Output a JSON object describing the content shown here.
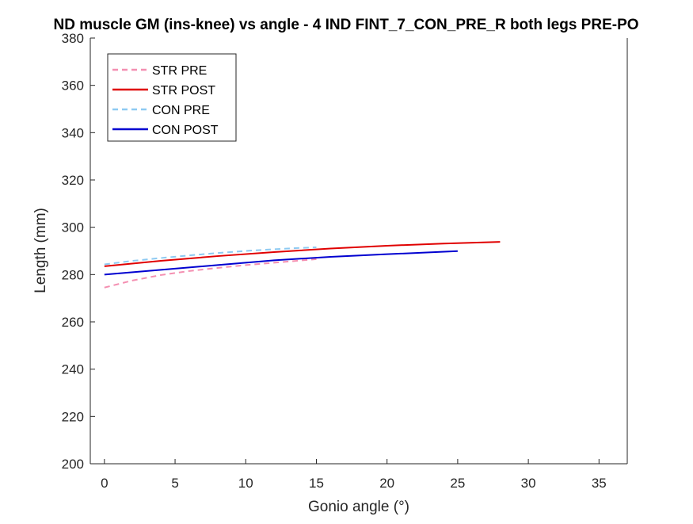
{
  "chart_data": {
    "type": "line",
    "title": "ND muscle GM (ins-knee) vs angle - 4 IND FINT_7_CON_PRE_R both legs PRE-PO",
    "xlabel": "Gonio angle (°)",
    "ylabel": "Length (mm)",
    "xlim": [
      -1,
      37
    ],
    "ylim": [
      200,
      380
    ],
    "xticks": [
      0,
      5,
      10,
      15,
      20,
      25,
      30,
      35
    ],
    "yticks": [
      200,
      220,
      240,
      260,
      280,
      300,
      320,
      340,
      360,
      380
    ],
    "grid": false,
    "legend_position": "top-left",
    "series": [
      {
        "name": "STR PRE",
        "color": "#F48FB1",
        "dashed": true,
        "x": [
          0,
          2,
          4,
          6,
          8,
          10,
          12,
          14,
          15
        ],
        "y": [
          274.5,
          277.5,
          279.8,
          281.5,
          282.8,
          284.0,
          285.0,
          286.0,
          286.5
        ]
      },
      {
        "name": "STR POST",
        "color": "#E00000",
        "dashed": false,
        "x": [
          0,
          4,
          8,
          12,
          16,
          20,
          24,
          28
        ],
        "y": [
          283.5,
          285.8,
          287.8,
          289.5,
          291.0,
          292.2,
          293.1,
          293.8
        ]
      },
      {
        "name": "CON PRE",
        "color": "#8ECAF2",
        "dashed": true,
        "x": [
          0,
          2,
          4,
          6,
          8,
          10,
          12,
          14,
          15
        ],
        "y": [
          284.3,
          285.8,
          287.0,
          288.1,
          289.1,
          290.0,
          290.7,
          291.3,
          291.5
        ]
      },
      {
        "name": "CON POST",
        "color": "#0000D0",
        "dashed": false,
        "x": [
          0,
          4,
          8,
          12,
          16,
          20,
          25
        ],
        "y": [
          280.0,
          282.0,
          284.0,
          286.0,
          287.5,
          288.6,
          289.9
        ]
      }
    ]
  }
}
